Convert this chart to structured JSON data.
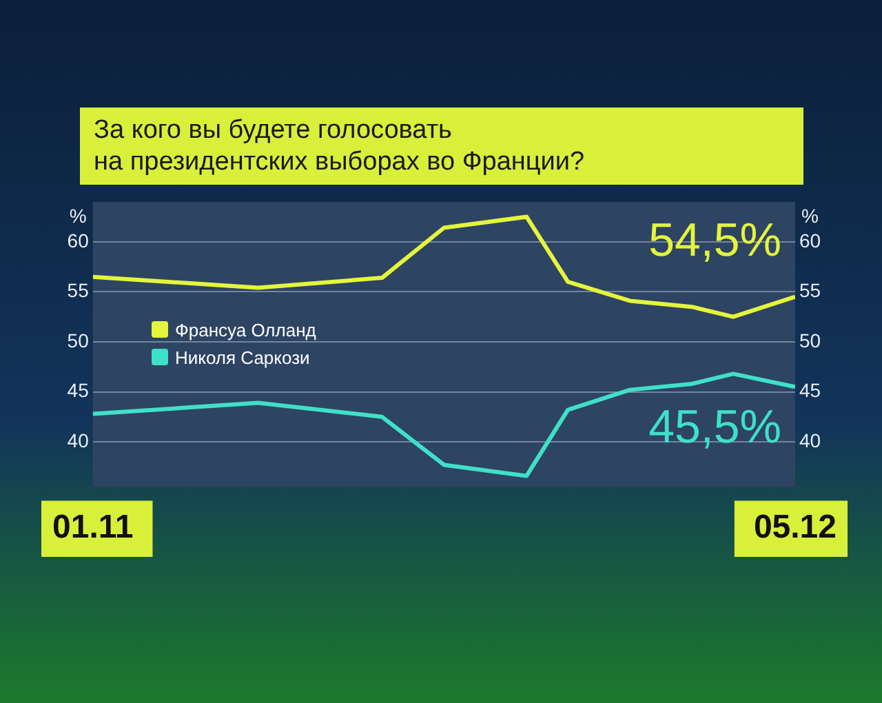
{
  "chart_data": {
    "type": "line",
    "title": "За кого вы будете голосовать\nна президентских выборах во Франции?",
    "x": [
      "--11-01",
      "--11-09",
      "--11-15",
      "--11-18",
      "--11-22",
      "--11-24",
      "--11-27",
      "--11-30",
      "--12-02",
      "--12-05"
    ],
    "series": [
      {
        "name": "Франсуа Олланд",
        "color": "#e4f53c",
        "values": [
          56.5,
          55.4,
          56.4,
          61.4,
          62.5,
          56.0,
          54.1,
          53.5,
          52.5,
          54.5
        ]
      },
      {
        "name": "Николя Саркози",
        "color": "#3fe0c8",
        "values": [
          42.8,
          43.9,
          42.5,
          37.7,
          36.6,
          43.2,
          45.2,
          45.8,
          46.8,
          45.5
        ]
      }
    ],
    "xlim": [
      "--11-01",
      "--12-05"
    ],
    "xticks": [
      {
        "value": "--11-01",
        "label": "01.11"
      },
      {
        "value": "--12-05",
        "label": "05.12"
      }
    ],
    "ylim": [
      35.5,
      64
    ],
    "yticks": [
      40,
      45,
      50,
      55,
      60
    ],
    "ylabel": "%",
    "y2lim": [
      35.5,
      64
    ],
    "y2ticks": [
      40,
      45,
      50,
      55,
      60
    ],
    "y2label": "%",
    "annotations": [
      {
        "text": "54,5%",
        "x": "--12-05",
        "y": 54.5
      },
      {
        "text": "45,5%",
        "x": "--12-05",
        "y": 45.5
      }
    ],
    "grid": "y",
    "legend": "left",
    "marker": "none",
    "line_style": "solid"
  }
}
